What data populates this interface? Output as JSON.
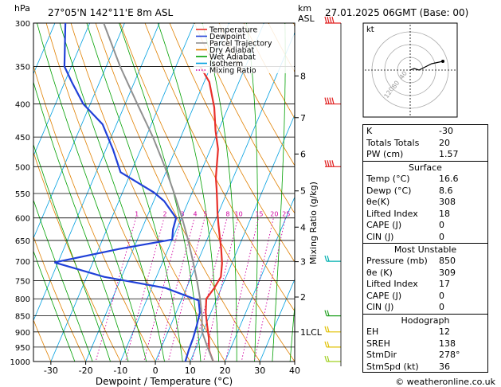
{
  "header": {
    "location": "27°05'N 142°11'E 8m ASL",
    "datetime": "27.01.2025 06GMT (Base: 00)",
    "hpa_label": "hPa",
    "km_label": "km",
    "asl_label": "ASL",
    "mixing_ratio_label": "Mixing Ratio (g/kg)",
    "lcl_label": "1LCL",
    "footer": "© weatheronline.co.uk"
  },
  "legend": [
    {
      "label": "Temperature",
      "color": "#e8302a",
      "style": "solid"
    },
    {
      "label": "Dewpoint",
      "color": "#2040d8",
      "style": "solid"
    },
    {
      "label": "Parcel Trajectory",
      "color": "#909090",
      "style": "solid"
    },
    {
      "label": "Dry Adiabat",
      "color": "#e08000",
      "style": "solid"
    },
    {
      "label": "Wet Adiabat",
      "color": "#00a000",
      "style": "solid"
    },
    {
      "label": "Isotherm",
      "color": "#00a0e0",
      "style": "solid"
    },
    {
      "label": "Mixing Ratio",
      "color": "#d000a0",
      "style": "dotted"
    }
  ],
  "chart_data": {
    "type": "line",
    "title": "",
    "xlabel": "Dewpoint / Temperature (°C)",
    "ylabel": "hPa",
    "xlim": [
      -35,
      40
    ],
    "ylim": [
      1000,
      300
    ],
    "y_scale": "log",
    "x_ticks": [
      -30,
      -20,
      -10,
      0,
      10,
      20,
      30,
      40
    ],
    "pressure_ticks": [
      300,
      350,
      400,
      450,
      500,
      550,
      600,
      650,
      700,
      750,
      800,
      850,
      900,
      950,
      1000
    ],
    "km_ticks": [
      {
        "km": "1LCL",
        "p": 900
      },
      {
        "km": "2",
        "p": 795
      },
      {
        "km": "3",
        "p": 701
      },
      {
        "km": "4",
        "p": 620
      },
      {
        "km": "5",
        "p": 545
      },
      {
        "km": "6",
        "p": 478
      },
      {
        "km": "7",
        "p": 420
      },
      {
        "km": "8",
        "p": 362
      }
    ],
    "mixing_ratio_labels": [
      "1",
      "2",
      "3",
      "4",
      "5",
      "8",
      "10",
      "15",
      "20",
      "25"
    ],
    "mixing_ratio_values": [
      1,
      2,
      3,
      4,
      5,
      8,
      10,
      15,
      20,
      25
    ],
    "mixing_ratio_label_p": 600,
    "series": [
      {
        "name": "Temperature",
        "color": "#e8302a",
        "points": [
          [
            16.6,
            1000
          ],
          [
            14.0,
            960
          ],
          [
            12.5,
            920
          ],
          [
            10.5,
            880
          ],
          [
            8.5,
            840
          ],
          [
            7.0,
            800
          ],
          [
            8.0,
            770
          ],
          [
            8.5,
            740
          ],
          [
            7.2,
            705
          ],
          [
            5.2,
            670
          ],
          [
            3.2,
            640
          ],
          [
            1.5,
            615
          ],
          [
            -0.2,
            590
          ],
          [
            -1.8,
            565
          ],
          [
            -3.5,
            540
          ],
          [
            -5.0,
            520
          ],
          [
            -5.8,
            505
          ],
          [
            -7.8,
            470
          ],
          [
            -10.8,
            440
          ],
          [
            -14.0,
            405
          ],
          [
            -18.5,
            370
          ],
          [
            -23.0,
            350
          ]
        ]
      },
      {
        "name": "Dewpoint",
        "color": "#2040d8",
        "points": [
          [
            8.6,
            1000
          ],
          [
            8.2,
            960
          ],
          [
            8.0,
            920
          ],
          [
            7.5,
            880
          ],
          [
            6.8,
            840
          ],
          [
            5.0,
            805
          ],
          [
            -6.0,
            770
          ],
          [
            -25.0,
            740
          ],
          [
            -41.0,
            703
          ],
          [
            -24.0,
            670
          ],
          [
            -10.0,
            648
          ],
          [
            -11.0,
            625
          ],
          [
            -11.5,
            600
          ],
          [
            -17.0,
            565
          ],
          [
            -21.0,
            548
          ],
          [
            -33.0,
            510
          ],
          [
            -38.0,
            470
          ],
          [
            -44.0,
            430
          ],
          [
            -52.0,
            400
          ],
          [
            -58.0,
            370
          ],
          [
            -62.0,
            350
          ],
          [
            -67.0,
            300
          ]
        ]
      },
      {
        "name": "Parcel Trajectory",
        "color": "#909090",
        "points": [
          [
            16.6,
            1000
          ],
          [
            13.2,
            950
          ],
          [
            9.8,
            900
          ],
          [
            7.8,
            850
          ],
          [
            5.2,
            800
          ],
          [
            2.1,
            750
          ],
          [
            -1.4,
            700
          ],
          [
            -5.3,
            650
          ],
          [
            -9.8,
            600
          ],
          [
            -15.0,
            550
          ],
          [
            -21.0,
            500
          ],
          [
            -28.0,
            450
          ],
          [
            -36.5,
            400
          ],
          [
            -46.0,
            350
          ],
          [
            -56.0,
            300
          ]
        ]
      }
    ]
  },
  "hodograph": {
    "label": "kt",
    "rings": [
      "40",
      "80",
      "120"
    ]
  },
  "indices": {
    "basic": [
      {
        "key": "K",
        "value": "-30"
      },
      {
        "key": "Totals Totals",
        "value": "20"
      },
      {
        "key": "PW (cm)",
        "value": "1.57"
      }
    ],
    "surface_title": "Surface",
    "surface": [
      {
        "key": "Temp (°C)",
        "value": "16.6"
      },
      {
        "key": "Dewp (°C)",
        "value": "8.6"
      },
      {
        "key": "θe(K)",
        "value": "308"
      },
      {
        "key": "Lifted Index",
        "value": "18"
      },
      {
        "key": "CAPE (J)",
        "value": "0"
      },
      {
        "key": "CIN (J)",
        "value": "0"
      }
    ],
    "unstable_title": "Most Unstable",
    "unstable": [
      {
        "key": "Pressure (mb)",
        "value": "850"
      },
      {
        "key": "θe (K)",
        "value": "309"
      },
      {
        "key": "Lifted Index",
        "value": "17"
      },
      {
        "key": "CAPE (J)",
        "value": "0"
      },
      {
        "key": "CIN (J)",
        "value": "0"
      }
    ],
    "hodo_title": "Hodograph",
    "hodo": [
      {
        "key": "EH",
        "value": "12"
      },
      {
        "key": "SREH",
        "value": "138"
      },
      {
        "key": "StmDir",
        "value": "278°"
      },
      {
        "key": "StmSpd (kt)",
        "value": "36"
      }
    ]
  }
}
